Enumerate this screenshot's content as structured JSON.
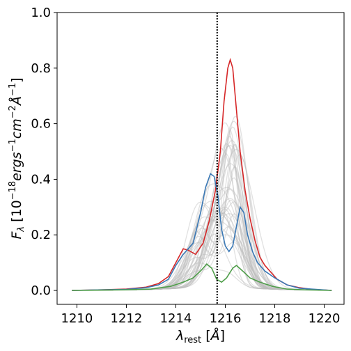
{
  "chart_data": {
    "type": "line",
    "xlabel": "λ_rest [Å]",
    "ylabel": "F_λ [10^-18 ergs^-1 cm^-2 Å^-1]",
    "xlim": [
      1209.2,
      1220.8
    ],
    "ylim": [
      -0.05,
      1.0
    ],
    "x_ticks": [
      1210,
      1212,
      1214,
      1216,
      1218,
      1220
    ],
    "y_ticks": [
      0.0,
      0.2,
      0.4,
      0.6,
      0.8,
      1.0
    ],
    "x_tick_labels": [
      "1210",
      "1212",
      "1214",
      "1216",
      "1218",
      "1220"
    ],
    "y_tick_labels": [
      "0.0",
      "0.2",
      "0.4",
      "0.6",
      "0.8",
      "1.0"
    ],
    "grid": false,
    "reference_line": {
      "x": 1215.67,
      "style": "dotted",
      "color": "#000000"
    },
    "series": [
      {
        "color": "#d62728",
        "points": [
          [
            1209.8,
            0.0
          ],
          [
            1211.0,
            0.002
          ],
          [
            1212.0,
            0.005
          ],
          [
            1212.8,
            0.012
          ],
          [
            1213.3,
            0.025
          ],
          [
            1213.7,
            0.05
          ],
          [
            1214.0,
            0.1
          ],
          [
            1214.3,
            0.15
          ],
          [
            1214.5,
            0.145
          ],
          [
            1214.8,
            0.13
          ],
          [
            1215.1,
            0.17
          ],
          [
            1215.35,
            0.25
          ],
          [
            1215.6,
            0.36
          ],
          [
            1215.8,
            0.5
          ],
          [
            1215.95,
            0.68
          ],
          [
            1216.1,
            0.8
          ],
          [
            1216.2,
            0.83
          ],
          [
            1216.3,
            0.8
          ],
          [
            1216.45,
            0.65
          ],
          [
            1216.6,
            0.5
          ],
          [
            1216.8,
            0.36
          ],
          [
            1217.0,
            0.26
          ],
          [
            1217.2,
            0.18
          ],
          [
            1217.4,
            0.12
          ],
          [
            1217.6,
            0.09
          ],
          [
            1217.8,
            0.07
          ],
          [
            1218.1,
            0.04
          ],
          [
            1218.5,
            0.02
          ],
          [
            1219.0,
            0.01
          ],
          [
            1219.5,
            0.004
          ],
          [
            1220.3,
            0.0
          ]
        ]
      },
      {
        "color": "#3a78b5",
        "points": [
          [
            1209.8,
            0.0
          ],
          [
            1211.0,
            0.002
          ],
          [
            1212.0,
            0.004
          ],
          [
            1212.8,
            0.01
          ],
          [
            1213.3,
            0.02
          ],
          [
            1213.7,
            0.04
          ],
          [
            1214.0,
            0.09
          ],
          [
            1214.3,
            0.13
          ],
          [
            1214.5,
            0.15
          ],
          [
            1214.7,
            0.17
          ],
          [
            1215.0,
            0.28
          ],
          [
            1215.2,
            0.37
          ],
          [
            1215.4,
            0.42
          ],
          [
            1215.55,
            0.41
          ],
          [
            1215.7,
            0.34
          ],
          [
            1215.85,
            0.22
          ],
          [
            1216.0,
            0.16
          ],
          [
            1216.15,
            0.14
          ],
          [
            1216.3,
            0.16
          ],
          [
            1216.45,
            0.23
          ],
          [
            1216.6,
            0.3
          ],
          [
            1216.75,
            0.28
          ],
          [
            1216.9,
            0.2
          ],
          [
            1217.1,
            0.14
          ],
          [
            1217.3,
            0.1
          ],
          [
            1217.6,
            0.07
          ],
          [
            1218.0,
            0.045
          ],
          [
            1218.5,
            0.02
          ],
          [
            1219.0,
            0.008
          ],
          [
            1220.3,
            0.0
          ]
        ]
      },
      {
        "color": "#4f9e4a",
        "points": [
          [
            1209.8,
            0.0
          ],
          [
            1211.0,
            0.001
          ],
          [
            1212.0,
            0.002
          ],
          [
            1213.0,
            0.005
          ],
          [
            1213.8,
            0.015
          ],
          [
            1214.3,
            0.03
          ],
          [
            1214.7,
            0.045
          ],
          [
            1215.0,
            0.07
          ],
          [
            1215.25,
            0.095
          ],
          [
            1215.45,
            0.08
          ],
          [
            1215.65,
            0.04
          ],
          [
            1215.85,
            0.03
          ],
          [
            1216.05,
            0.045
          ],
          [
            1216.3,
            0.08
          ],
          [
            1216.45,
            0.09
          ],
          [
            1216.7,
            0.07
          ],
          [
            1217.0,
            0.045
          ],
          [
            1217.4,
            0.03
          ],
          [
            1217.9,
            0.015
          ],
          [
            1218.5,
            0.005
          ],
          [
            1219.2,
            0.002
          ],
          [
            1220.3,
            0.0
          ]
        ]
      }
    ],
    "background_series_color": "#bdbdbd",
    "background_series_count": 40
  }
}
